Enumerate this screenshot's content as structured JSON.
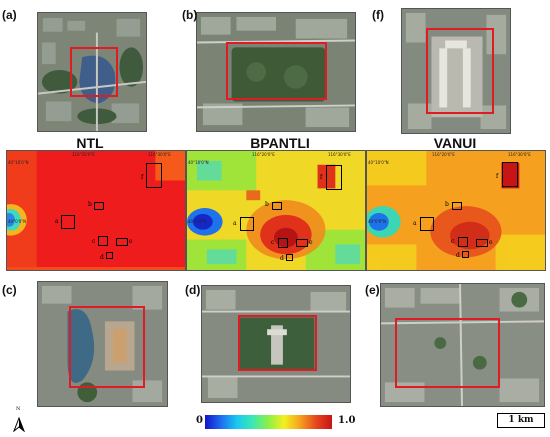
{
  "panels": {
    "a": "(a)",
    "b": "(b)",
    "f": "(f)",
    "c": "(c)",
    "d": "(d)",
    "e": "(e)"
  },
  "maps": {
    "ntl": "NTL",
    "bpantli": "BPANTLI",
    "vanui": "VANUI"
  },
  "ticks": {
    "lon1": "116°20'0\"E",
    "lon2": "116°30'0\"E",
    "lat1": "40°10'0\"N",
    "lat2": "40°0'0\"N"
  },
  "roi": {
    "a": "a",
    "b": "b",
    "c": "c",
    "d": "d",
    "e": "e",
    "f": "f"
  },
  "colorbar": {
    "min": "0",
    "max": "1.0",
    "colors": [
      "#1414c8",
      "#19c8f0",
      "#8cf046",
      "#f5f01e",
      "#e6461e",
      "#c81414"
    ]
  },
  "scale": "1 km",
  "north": "N"
}
